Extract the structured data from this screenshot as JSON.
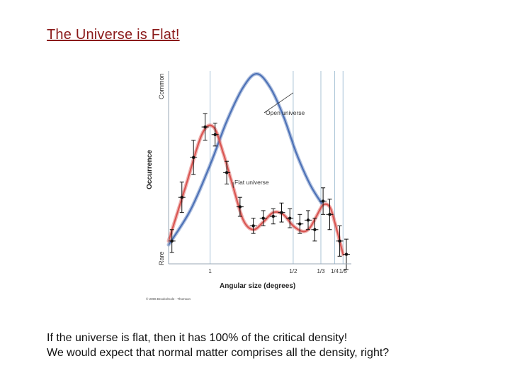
{
  "slide": {
    "title": "The Universe is Flat!",
    "body_lines": [
      "If the universe is flat, then it has 100% of the critical density!",
      "We would expect that normal matter comprises all the density, right?"
    ]
  },
  "chart_data": {
    "type": "line",
    "title": "",
    "xlabel": "Angular size (degrees)",
    "ylabel": "Occurrence",
    "y_extremes": {
      "top": "Common",
      "bottom": "Rare"
    },
    "x_ticks": [
      "1",
      "1/2",
      "1/3",
      "1/4",
      "1/5"
    ],
    "x_range": [
      0.15,
      1.25
    ],
    "grid": "vertical",
    "copyright": "© 2006 Brooks/Cole - Thomson",
    "series": [
      {
        "name": "Open universe",
        "color": "#4a6fb5",
        "points": [
          [
            1.25,
            0.1
          ],
          [
            1.12,
            0.28
          ],
          [
            1.0,
            0.52
          ],
          [
            0.9,
            0.75
          ],
          [
            0.8,
            0.93
          ],
          [
            0.72,
            1.0
          ],
          [
            0.64,
            0.93
          ],
          [
            0.56,
            0.78
          ],
          [
            0.48,
            0.58
          ],
          [
            0.4,
            0.42
          ],
          [
            0.33,
            0.32
          ]
        ]
      },
      {
        "name": "Flat universe",
        "color": "#d9534f",
        "points": [
          [
            1.25,
            0.12
          ],
          [
            1.15,
            0.4
          ],
          [
            1.05,
            0.68
          ],
          [
            0.98,
            0.72
          ],
          [
            0.92,
            0.58
          ],
          [
            0.86,
            0.4
          ],
          [
            0.8,
            0.23
          ],
          [
            0.74,
            0.18
          ],
          [
            0.68,
            0.22
          ],
          [
            0.62,
            0.27
          ],
          [
            0.56,
            0.26
          ],
          [
            0.5,
            0.2
          ],
          [
            0.44,
            0.17
          ],
          [
            0.4,
            0.19
          ],
          [
            0.36,
            0.25
          ],
          [
            0.32,
            0.31
          ],
          [
            0.28,
            0.3
          ],
          [
            0.25,
            0.22
          ],
          [
            0.22,
            0.12
          ],
          [
            0.2,
            0.05
          ]
        ]
      }
    ],
    "measurements": [
      {
        "x": 1.23,
        "y": 0.12,
        "yerr": 0.06
      },
      {
        "x": 1.17,
        "y": 0.35,
        "yerr": 0.08
      },
      {
        "x": 1.1,
        "y": 0.56,
        "yerr": 0.09
      },
      {
        "x": 1.03,
        "y": 0.72,
        "yerr": 0.07
      },
      {
        "x": 0.97,
        "y": 0.68,
        "yerr": 0.06
      },
      {
        "x": 0.9,
        "y": 0.48,
        "yerr": 0.06
      },
      {
        "x": 0.82,
        "y": 0.3,
        "yerr": 0.05
      },
      {
        "x": 0.74,
        "y": 0.2,
        "yerr": 0.04
      },
      {
        "x": 0.68,
        "y": 0.24,
        "yerr": 0.04
      },
      {
        "x": 0.62,
        "y": 0.25,
        "yerr": 0.04
      },
      {
        "x": 0.57,
        "y": 0.27,
        "yerr": 0.05
      },
      {
        "x": 0.52,
        "y": 0.24,
        "yerr": 0.05
      },
      {
        "x": 0.46,
        "y": 0.21,
        "yerr": 0.05
      },
      {
        "x": 0.41,
        "y": 0.23,
        "yerr": 0.05
      },
      {
        "x": 0.37,
        "y": 0.18,
        "yerr": 0.06
      },
      {
        "x": 0.32,
        "y": 0.33,
        "yerr": 0.07
      },
      {
        "x": 0.28,
        "y": 0.26,
        "yerr": 0.08
      },
      {
        "x": 0.22,
        "y": 0.12,
        "yerr": 0.08
      },
      {
        "x": 0.18,
        "y": 0.05,
        "yerr": 0.08
      }
    ]
  }
}
